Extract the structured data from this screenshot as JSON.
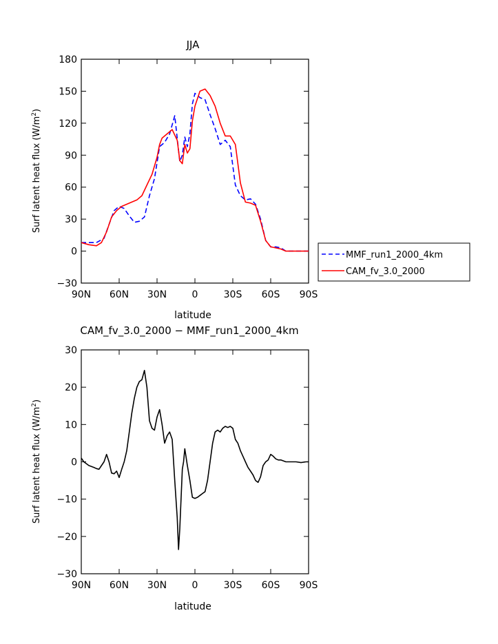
{
  "chart_data": [
    {
      "type": "line",
      "title": "JJA",
      "xlabel": "latitude",
      "ylabel_main": "Surf latent heat flux (W/m",
      "ylabel_sup": "2",
      "ylabel_close": ")",
      "xlim": [
        90,
        -90
      ],
      "ylim": [
        -30,
        180
      ],
      "x_ticks": [
        90,
        60,
        30,
        0,
        -30,
        -60,
        -90
      ],
      "x_tick_labels": [
        "90N",
        "60N",
        "30N",
        "0",
        "30S",
        "60S",
        "90S"
      ],
      "y_ticks": [
        -30,
        0,
        30,
        60,
        90,
        120,
        150,
        180
      ],
      "y_tick_labels": [
        "−30",
        "0",
        "30",
        "60",
        "90",
        "120",
        "150",
        "180"
      ],
      "legend_position": "right",
      "series": [
        {
          "name": "MMF_run1_2000_4km",
          "color": "#0000ff",
          "style": "dashed",
          "x": [
            90,
            84,
            78,
            72,
            68,
            64,
            60,
            56,
            52,
            48,
            44,
            40,
            36,
            32,
            28,
            24,
            20,
            16,
            12,
            10,
            8,
            6,
            4,
            2,
            0,
            -4,
            -8,
            -12,
            -16,
            -20,
            -24,
            -28,
            -32,
            -36,
            -40,
            -44,
            -48,
            -52,
            -56,
            -60,
            -64,
            -68,
            -72,
            -76,
            -80,
            -84,
            -88,
            -90
          ],
          "y": [
            8,
            8,
            8,
            12,
            25,
            38,
            42,
            40,
            33,
            27,
            28,
            32,
            52,
            68,
            98,
            102,
            110,
            127,
            84,
            90,
            107,
            98,
            110,
            138,
            148,
            144,
            142,
            128,
            115,
            100,
            104,
            98,
            62,
            52,
            48,
            49,
            44,
            30,
            10,
            4,
            4,
            3,
            0,
            0,
            0,
            0,
            0,
            0
          ]
        },
        {
          "name": "CAM_fv_3.0_2000",
          "color": "#ff0000",
          "style": "solid",
          "x": [
            90,
            84,
            78,
            74,
            70,
            66,
            62,
            58,
            54,
            50,
            46,
            42,
            38,
            34,
            30,
            28,
            26,
            22,
            18,
            14,
            12,
            10,
            8,
            6,
            4,
            2,
            0,
            -4,
            -8,
            -12,
            -16,
            -20,
            -24,
            -28,
            -32,
            -36,
            -40,
            -44,
            -48,
            -52,
            -56,
            -60,
            -64,
            -68,
            -72,
            -76,
            -80,
            -84,
            -88,
            -90
          ],
          "y": [
            8,
            6,
            5,
            8,
            18,
            32,
            38,
            42,
            44,
            46,
            48,
            52,
            62,
            72,
            88,
            100,
            106,
            110,
            114,
            104,
            85,
            82,
            100,
            92,
            96,
            122,
            136,
            150,
            152,
            146,
            136,
            120,
            108,
            108,
            100,
            64,
            46,
            45,
            43,
            28,
            10,
            4,
            3,
            2,
            0,
            0,
            0,
            0,
            0,
            0
          ]
        }
      ]
    },
    {
      "type": "line",
      "title": "CAM_fv_3.0_2000 − MMF_run1_2000_4km",
      "xlabel": "latitude",
      "ylabel_main": "Surf latent heat flux (W/m",
      "ylabel_sup": "2",
      "ylabel_close": ")",
      "xlim": [
        90,
        -90
      ],
      "ylim": [
        -30,
        30
      ],
      "x_ticks": [
        90,
        60,
        30,
        0,
        -30,
        -60,
        -90
      ],
      "x_tick_labels": [
        "90N",
        "60N",
        "30N",
        "0",
        "30S",
        "60S",
        "90S"
      ],
      "y_ticks": [
        -30,
        -20,
        -10,
        0,
        10,
        20,
        30
      ],
      "y_tick_labels": [
        "−30",
        "−20",
        "−10",
        "0",
        "10",
        "20",
        "30"
      ],
      "series": [
        {
          "color": "#000000",
          "style": "solid",
          "x": [
            90,
            88,
            84,
            80,
            78,
            76,
            72,
            70,
            68,
            66,
            64,
            62,
            60,
            58,
            56,
            54,
            52,
            50,
            48,
            46,
            44,
            42,
            40,
            38,
            36,
            34,
            32,
            30,
            28,
            26,
            24,
            22,
            20,
            18,
            16,
            14,
            13,
            12,
            10,
            9,
            8,
            6,
            4,
            2,
            0,
            -2,
            -4,
            -6,
            -8,
            -10,
            -12,
            -14,
            -16,
            -18,
            -20,
            -22,
            -24,
            -26,
            -28,
            -30,
            -32,
            -34,
            -36,
            -38,
            -40,
            -42,
            -44,
            -46,
            -48,
            -50,
            -52,
            -54,
            -56,
            -58,
            -60,
            -62,
            -64,
            -66,
            -68,
            -72,
            -76,
            -80,
            -84,
            -88,
            -90
          ],
          "y": [
            1,
            0,
            -1,
            -1.5,
            -1.8,
            -2,
            0,
            2,
            0,
            -3,
            -3.2,
            -2.5,
            -4.2,
            -2,
            0,
            3,
            8,
            13,
            17,
            20,
            21.5,
            22,
            24.5,
            20,
            11,
            9,
            8.5,
            12,
            14,
            10,
            5,
            7,
            8,
            6,
            -5,
            -15,
            -23.5,
            -18,
            -2,
            0,
            3.5,
            -1,
            -5,
            -9.5,
            -9.8,
            -9.5,
            -9,
            -8.5,
            -8,
            -5,
            0,
            5,
            8,
            8.5,
            8,
            9,
            9.5,
            9.2,
            9.5,
            9,
            6,
            5,
            3,
            1.5,
            0,
            -1.5,
            -2.5,
            -3.5,
            -5,
            -5.5,
            -4,
            -1,
            0,
            0.5,
            2,
            1.5,
            0.8,
            0.5,
            0.5,
            0,
            0,
            0,
            -0.2,
            0,
            0
          ]
        }
      ]
    }
  ]
}
